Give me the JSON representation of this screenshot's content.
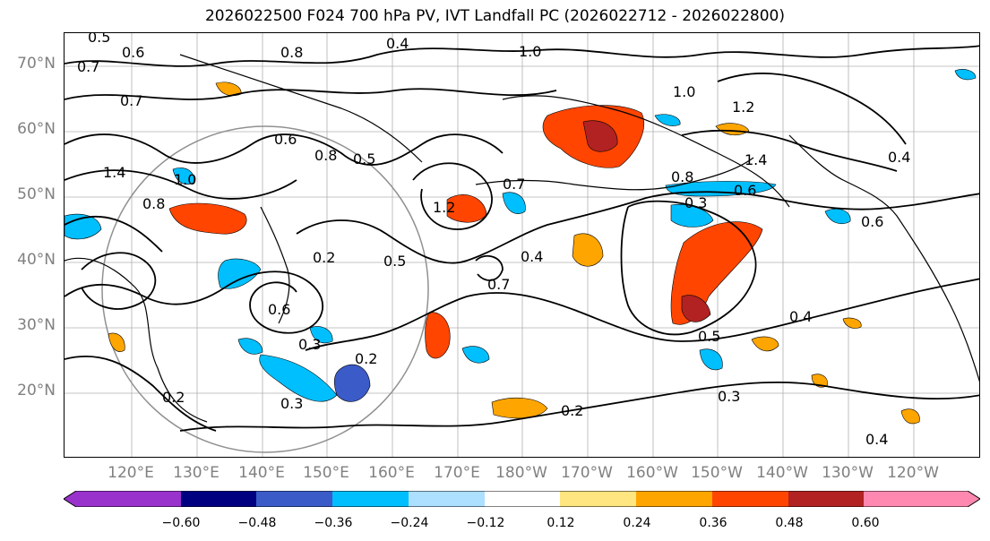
{
  "title": "2026022500 F024 700 hPa PV, IVT Landfall PC (2026022712 - 2026022800)",
  "lat_labels": [
    "70°N",
    "60°N",
    "50°N",
    "40°N",
    "30°N",
    "20°N"
  ],
  "lon_labels": [
    "120°E",
    "130°E",
    "140°E",
    "150°E",
    "160°E",
    "170°E",
    "180°W",
    "170°W",
    "160°W",
    "150°W",
    "140°W",
    "130°W",
    "120°W"
  ],
  "colorbar": {
    "colors": [
      "#9932CC",
      "#000080",
      "#3A5BC8",
      "#00BFFF",
      "#ADDFFF",
      "#FFFFFF",
      "#FFE680",
      "#FFA500",
      "#FF4500",
      "#B22222",
      "#FF88B0"
    ],
    "ticks": [
      "−0.60",
      "−0.48",
      "−0.36",
      "−0.24",
      "−0.12",
      "0.12",
      "0.24",
      "0.36",
      "0.48",
      "0.60"
    ]
  },
  "contour_labels": [
    "0.4",
    "0.5",
    "0.6",
    "0.7",
    "0.8",
    "1.0",
    "1.2",
    "1.4",
    "0.2",
    "0.3",
    "0.4",
    "0.5",
    "0.6",
    "0.7",
    "0.8",
    "1.0",
    "0.8",
    "0.2",
    "0.3",
    "0.2",
    "0.4",
    "0.5",
    "0.7",
    "0.6",
    "0.3",
    "0.2",
    "0.3",
    "0.4",
    "0.5",
    "0.6",
    "0.4",
    "1.0",
    "0.7",
    "0.8",
    "0.6",
    "1.4",
    "1.2"
  ]
}
